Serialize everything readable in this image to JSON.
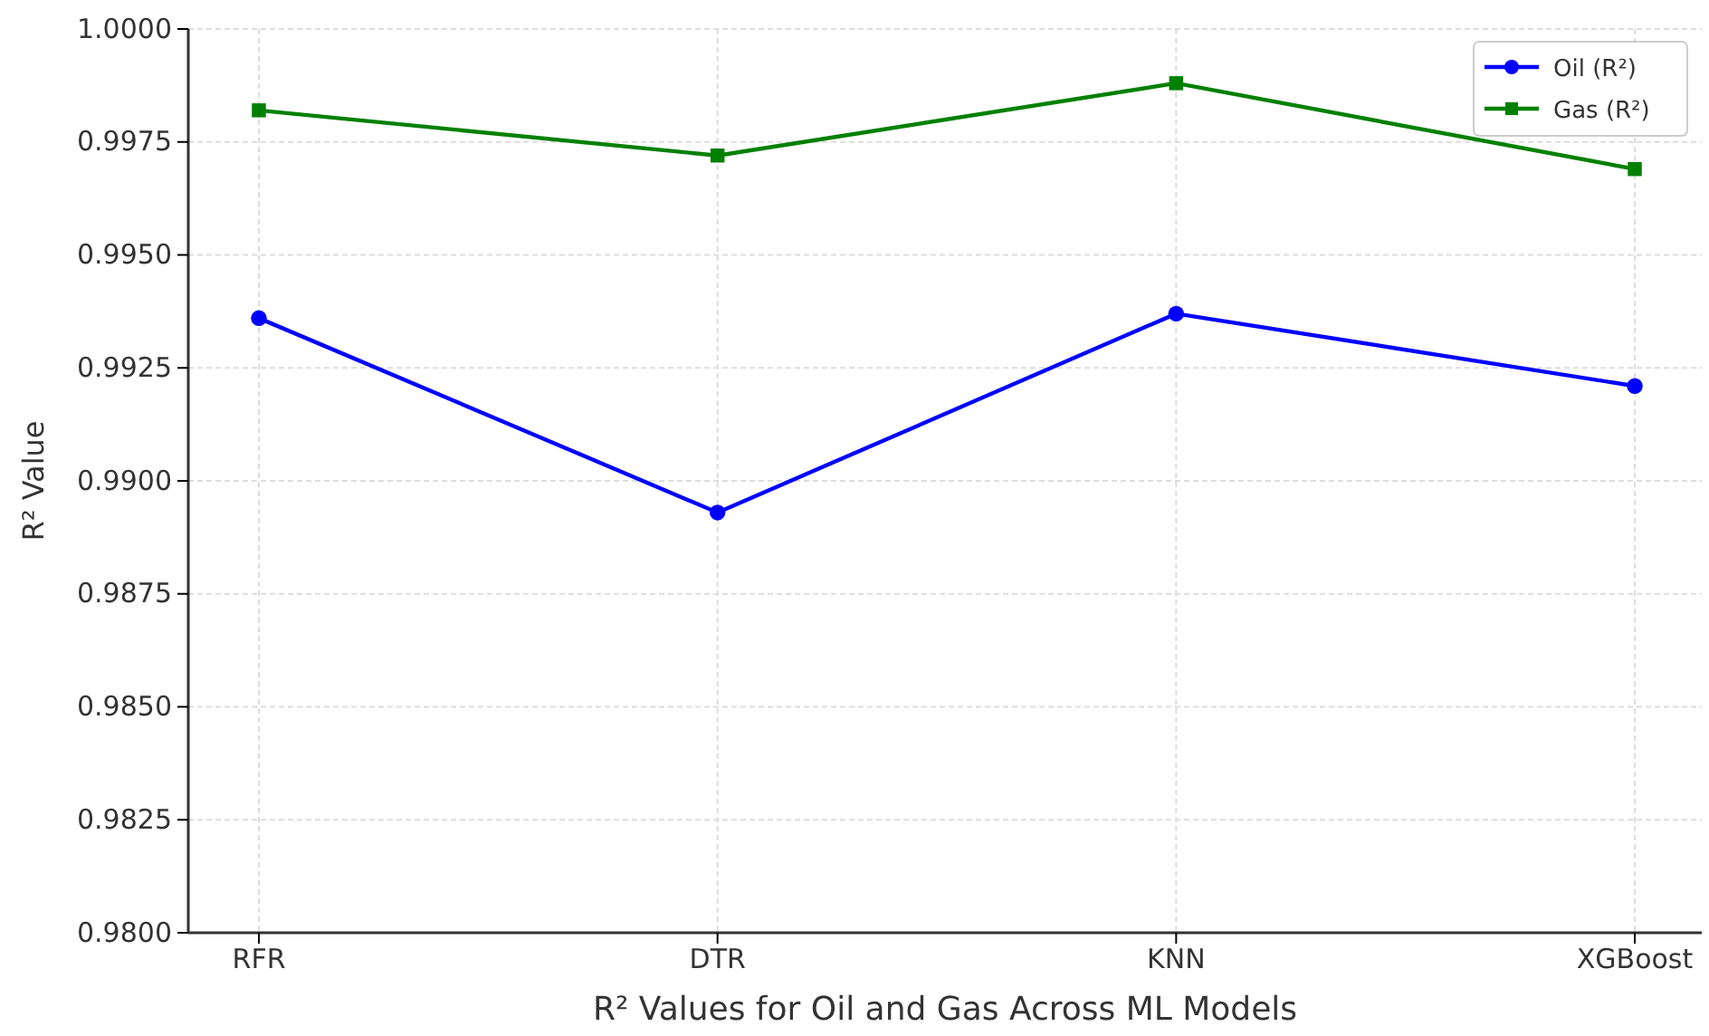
{
  "chart_data": {
    "type": "line",
    "xlabel": "R² Values for Oil and Gas Across ML Models",
    "ylabel": "R² Value",
    "categories": [
      "RFR",
      "DTR",
      "KNN",
      "XGBoost"
    ],
    "series": [
      {
        "name": "Oil (R²)",
        "color": "#0000ff",
        "marker": "circle",
        "values": [
          0.9936,
          0.9893,
          0.9937,
          0.9921
        ]
      },
      {
        "name": "Gas (R²)",
        "color": "#008000",
        "marker": "square",
        "values": [
          0.9982,
          0.9972,
          0.9988,
          0.9969
        ]
      }
    ],
    "ylim": [
      0.98,
      1.0
    ],
    "yticks": [
      {
        "value": 0.98,
        "label": "0.9800"
      },
      {
        "value": 0.9825,
        "label": "0.9825"
      },
      {
        "value": 0.985,
        "label": "0.9850"
      },
      {
        "value": 0.9875,
        "label": "0.9875"
      },
      {
        "value": 0.99,
        "label": "0.9900"
      },
      {
        "value": 0.9925,
        "label": "0.9925"
      },
      {
        "value": 0.995,
        "label": "0.9950"
      },
      {
        "value": 0.9975,
        "label": "0.9975"
      },
      {
        "value": 1.0,
        "label": "1.0000"
      }
    ],
    "grid": true,
    "legend": "top right",
    "line_style": "solid"
  }
}
